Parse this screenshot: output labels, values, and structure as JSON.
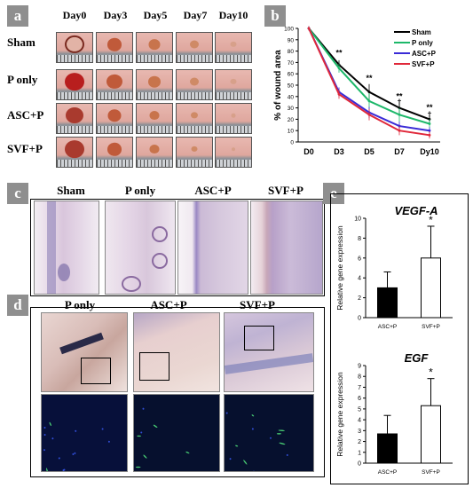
{
  "panel_a": {
    "label": "a",
    "columns": [
      "Day0",
      "Day3",
      "Day5",
      "Day7",
      "Day10"
    ],
    "rows": [
      "Sham",
      "P only",
      "ASC+P",
      "SVF+P"
    ]
  },
  "panel_b": {
    "label": "b"
  },
  "panel_c": {
    "label": "c",
    "titles": [
      "Sham",
      "P only",
      "ASC+P",
      "SVF+P"
    ]
  },
  "panel_d": {
    "label": "d",
    "titles": [
      "P only",
      "ASC+P",
      "SVF+P"
    ]
  },
  "panel_e": {
    "label": "e"
  },
  "colors": {
    "sham": "#000000",
    "p_only": "#1db86a",
    "asc_p": "#3a2bd6",
    "svf_p": "#e0283a",
    "label_bg": "#8f8f8f"
  },
  "chart_data": [
    {
      "type": "line",
      "title": "",
      "xlabel": "",
      "ylabel": "% of wound area",
      "x": [
        "D0",
        "D3",
        "D5",
        "D7",
        "Dy10"
      ],
      "ylim": [
        0,
        100
      ],
      "yticks": [
        "0",
        "10",
        "20",
        "30",
        "40",
        "50",
        "60",
        "70",
        "80",
        "90",
        "100"
      ],
      "legend": "top-right",
      "series": [
        {
          "name": "Sham",
          "color": "#000000",
          "values": [
            100,
            68,
            44,
            30,
            20
          ],
          "errors": [
            2,
            4,
            7,
            6,
            4
          ]
        },
        {
          "name": "P only",
          "color": "#1db86a",
          "values": [
            100,
            65,
            36,
            24,
            16
          ],
          "errors": [
            2,
            4,
            7,
            6,
            4
          ]
        },
        {
          "name": "ASC+P",
          "color": "#3a2bd6",
          "values": [
            100,
            44,
            26,
            14,
            10
          ],
          "errors": [
            2,
            4,
            5,
            4,
            3
          ]
        },
        {
          "name": "SVF+P",
          "color": "#e0283a",
          "values": [
            100,
            42,
            24,
            10,
            6
          ],
          "errors": [
            2,
            4,
            5,
            4,
            3
          ]
        }
      ],
      "annotations": [
        {
          "x": "D3",
          "text": "**"
        },
        {
          "x": "D5",
          "text": "**"
        },
        {
          "x": "D7",
          "text": "**"
        },
        {
          "x": "D7",
          "text": "†"
        },
        {
          "x": "Dy10",
          "text": "**"
        },
        {
          "x": "Dy10",
          "text": "†"
        }
      ]
    },
    {
      "type": "bar",
      "title": "VEGF-A",
      "xlabel": "",
      "ylabel": "Relative gene expression",
      "categories": [
        "ASC+P",
        "SVF+P"
      ],
      "values": [
        3.0,
        6.0
      ],
      "errors": [
        1.6,
        3.2
      ],
      "ylim": [
        0,
        10
      ],
      "yticks": [
        "0",
        "2",
        "4",
        "6",
        "8",
        "10"
      ],
      "annotation": "*"
    },
    {
      "type": "bar",
      "title": "EGF",
      "xlabel": "",
      "ylabel": "Relative gene expression",
      "categories": [
        "ASC+P",
        "SVF+P"
      ],
      "values": [
        2.7,
        5.3
      ],
      "errors": [
        1.7,
        2.5
      ],
      "ylim": [
        0,
        9
      ],
      "yticks": [
        "0",
        "1",
        "2",
        "3",
        "4",
        "5",
        "6",
        "7",
        "8",
        "9"
      ],
      "annotation": "*"
    }
  ]
}
